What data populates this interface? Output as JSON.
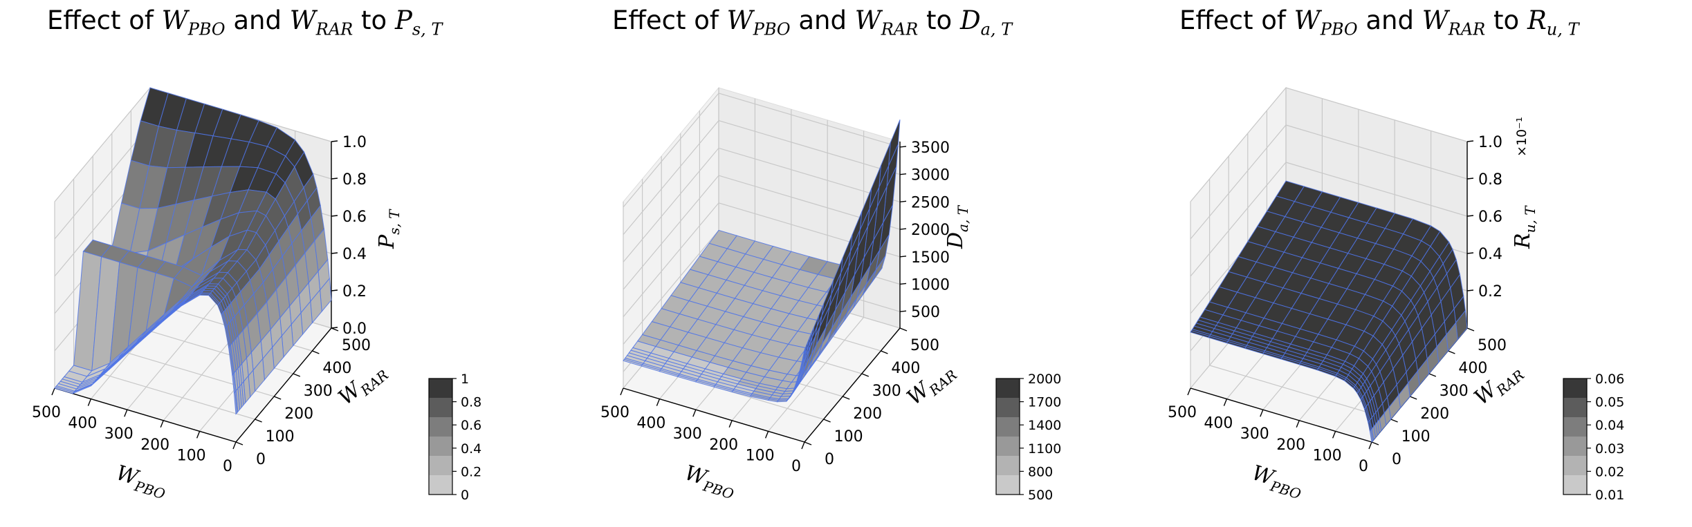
{
  "chart_data": [
    {
      "type": "surface3d",
      "title_prefix": "Effect of ",
      "title_conj": " and ",
      "title_to": " to ",
      "title_var_a": "W",
      "title_sub_a": "PBO",
      "title_var_b": "W",
      "title_sub_b": "RAR",
      "title_var_c": "P",
      "title_sub_c": "s, T",
      "xlabel_var": "W",
      "xlabel_sub": "PBO",
      "ylabel_var": "W",
      "ylabel_sub": "RAR",
      "zlabel_var": "P",
      "zlabel_sub": "s, T",
      "x_ticks": [
        "500",
        "400",
        "300",
        "200",
        "100",
        "0"
      ],
      "y_ticks": [
        "0",
        "100",
        "200",
        "300",
        "400",
        "500"
      ],
      "z_ticks": [
        "0.0",
        "0.2",
        "0.4",
        "0.6",
        "0.8",
        "1.0"
      ],
      "xlim": [
        0,
        500
      ],
      "ylim": [
        0,
        500
      ],
      "zlim": [
        0,
        1
      ],
      "grid": [
        0,
        5,
        10,
        20,
        30,
        40,
        50,
        75,
        100,
        150,
        200,
        250,
        300,
        350,
        400,
        450,
        500
      ],
      "z_model": "success_probability",
      "z_range": [
        0,
        1
      ],
      "colorbar_ticks": [
        "1",
        "0.8",
        "0.6",
        "0.4",
        "0.2",
        "0"
      ],
      "colormap": [
        "#c9c9c9",
        "#b3b3b3",
        "#999999",
        "#7d7d7d",
        "#5c5c5c",
        "#383838"
      ],
      "edge_color": "#4f74e8",
      "offset_label": ""
    },
    {
      "type": "surface3d",
      "title_prefix": "Effect of ",
      "title_conj": " and ",
      "title_to": " to ",
      "title_var_a": "W",
      "title_sub_a": "PBO",
      "title_var_b": "W",
      "title_sub_b": "RAR",
      "title_var_c": "D",
      "title_sub_c": "a, T",
      "xlabel_var": "W",
      "xlabel_sub": "PBO",
      "ylabel_var": "W",
      "ylabel_sub": "RAR",
      "zlabel_var": "D",
      "zlabel_sub": "a, T",
      "x_ticks": [
        "500",
        "400",
        "300",
        "200",
        "100",
        "0"
      ],
      "y_ticks": [
        "0",
        "100",
        "200",
        "300",
        "400",
        "500"
      ],
      "z_ticks": [
        "500",
        "1000",
        "1500",
        "2000",
        "2500",
        "3000",
        "3500"
      ],
      "xlim": [
        0,
        500
      ],
      "ylim": [
        0,
        500
      ],
      "zlim": [
        200,
        3600
      ],
      "grid": [
        0,
        5,
        10,
        20,
        30,
        40,
        50,
        75,
        100,
        150,
        200,
        250,
        300,
        350,
        400,
        450,
        500
      ],
      "z_model": "delay",
      "z_range": [
        500,
        2000
      ],
      "colorbar_ticks": [
        "2000",
        "1700",
        "1400",
        "1100",
        "800",
        "500"
      ],
      "colormap": [
        "#c9c9c9",
        "#b3b3b3",
        "#999999",
        "#7d7d7d",
        "#5c5c5c",
        "#383838"
      ],
      "edge_color": "#4f74e8",
      "offset_label": ""
    },
    {
      "type": "surface3d",
      "title_prefix": "Effect of ",
      "title_conj": " and ",
      "title_to": " to ",
      "title_var_a": "W",
      "title_sub_a": "PBO",
      "title_var_b": "W",
      "title_sub_b": "RAR",
      "title_var_c": "R",
      "title_sub_c": "u, T",
      "xlabel_var": "W",
      "xlabel_sub": "PBO",
      "ylabel_var": "W",
      "ylabel_sub": "RAR",
      "zlabel_var": "R",
      "zlabel_sub": "u, T",
      "x_ticks": [
        "500",
        "400",
        "300",
        "200",
        "100",
        "0"
      ],
      "y_ticks": [
        "0",
        "100",
        "200",
        "300",
        "400",
        "500"
      ],
      "z_ticks": [
        "0.2",
        "0.4",
        "0.6",
        "0.8",
        "1.0"
      ],
      "xlim": [
        0,
        500
      ],
      "ylim": [
        0,
        500
      ],
      "zlim": [
        0,
        1
      ],
      "grid": [
        0,
        5,
        10,
        20,
        30,
        40,
        50,
        75,
        100,
        150,
        200,
        250,
        300,
        350,
        400,
        450,
        500
      ],
      "z_model": "utility",
      "z_range": [
        0.01,
        0.06
      ],
      "colorbar_ticks": [
        "0.06",
        "0.05",
        "0.04",
        "0.03",
        "0.02",
        "0.01"
      ],
      "colormap": [
        "#c9c9c9",
        "#b3b3b3",
        "#999999",
        "#7d7d7d",
        "#5c5c5c",
        "#383838"
      ],
      "edge_color": "#4f74e8",
      "offset_label": "×10⁻¹"
    }
  ]
}
